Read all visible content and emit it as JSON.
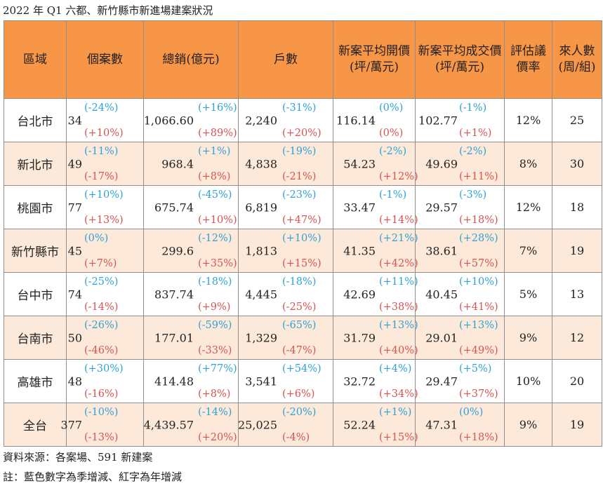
{
  "title": "2022 年 Q1 六都、新竹縣市新進場建案狀況",
  "headers": [
    "區域",
    "個案數",
    "總銷(億元)",
    "戶數",
    "新案平均開價(坪/萬元)",
    "新案平均成交價(坪/萬元)",
    "評估議價率",
    "來人數(周/組)"
  ],
  "rows": [
    {
      "region": "台北市",
      "cases": [
        "34",
        "(-24%)",
        "(+10%)"
      ],
      "sales": [
        "1,066.60",
        "(+16%)",
        "(+89%)"
      ],
      "units": [
        "2,240",
        "(-31%)",
        "(+20%)"
      ],
      "ask": [
        "116.14",
        "(0%)",
        "(0%)"
      ],
      "deal": [
        "102.77",
        "(-1%)",
        "(+1%)"
      ],
      "bargain": "12%",
      "visitors": "25"
    },
    {
      "region": "新北市",
      "cases": [
        "49",
        "(-11%)",
        "(-17%)"
      ],
      "sales": [
        "968.4",
        "(+1%)",
        "(+8%)"
      ],
      "units": [
        "4,838",
        "(-19%)",
        "(-21%)"
      ],
      "ask": [
        "54.23",
        "(-2%)",
        "(+12%)"
      ],
      "deal": [
        "49.69",
        "(-2%)",
        "(+11%)"
      ],
      "bargain": "8%",
      "visitors": "30"
    },
    {
      "region": "桃園市",
      "cases": [
        "77",
        "(+10%)",
        "(+13%)"
      ],
      "sales": [
        "675.74",
        "(-45%)",
        "(+10%)"
      ],
      "units": [
        "6,819",
        "(-23%)",
        "(+47%)"
      ],
      "ask": [
        "33.47",
        "(-1%)",
        "(+14%)"
      ],
      "deal": [
        "29.57",
        "(-3%)",
        "(+18%)"
      ],
      "bargain": "12%",
      "visitors": "18"
    },
    {
      "region": "新竹縣市",
      "cases": [
        "45",
        "(0%)",
        "(+7%)"
      ],
      "sales": [
        "299.6",
        "(-12%)",
        "(+35%)"
      ],
      "units": [
        "1,813",
        "(+10%)",
        "(+15%)"
      ],
      "ask": [
        "41.35",
        "(+21%)",
        "(+42%)"
      ],
      "deal": [
        "38.61",
        "(+28%)",
        "(+57%)"
      ],
      "bargain": "7%",
      "visitors": "19"
    },
    {
      "region": "台中市",
      "cases": [
        "74",
        "(-25%)",
        "(-14%)"
      ],
      "sales": [
        "837.74",
        "(-18%)",
        "(+9%)"
      ],
      "units": [
        "4,445",
        "(-18%)",
        "(-25%)"
      ],
      "ask": [
        "42.69",
        "(+11%)",
        "(+38%)"
      ],
      "deal": [
        "40.45",
        "(+10%)",
        "(+41%)"
      ],
      "bargain": "5%",
      "visitors": "13"
    },
    {
      "region": "台南市",
      "cases": [
        "50",
        "(-26%)",
        "(-46%)"
      ],
      "sales": [
        "177.01",
        "(-59%)",
        "(-33%)"
      ],
      "units": [
        "1,329",
        "(-65%)",
        "(-47%)"
      ],
      "ask": [
        "31.79",
        "(+13%)",
        "(+40%)"
      ],
      "deal": [
        "29.01",
        "(+13%)",
        "(+49%)"
      ],
      "bargain": "9%",
      "visitors": "12"
    },
    {
      "region": "高雄市",
      "cases": [
        "48",
        "(+30%)",
        "(-16%)"
      ],
      "sales": [
        "414.48",
        "(+77%)",
        "(+8%)"
      ],
      "units": [
        "3,541",
        "(+54%)",
        "(+6%)"
      ],
      "ask": [
        "32.72",
        "(+4%)",
        "(+34%)"
      ],
      "deal": [
        "29.47",
        "(+5%)",
        "(+37%)"
      ],
      "bargain": "10%",
      "visitors": "20"
    },
    {
      "region": "全台",
      "cases": [
        "377",
        "(-10%)",
        "(-13%)"
      ],
      "sales": [
        "4,439.57",
        "(-14%)",
        "(+20%)"
      ],
      "units": [
        "25,025",
        "(-20%)",
        "(-4%)"
      ],
      "ask": [
        "52.24",
        "(+1%)",
        "(+15%)"
      ],
      "deal": [
        "47.31",
        "(0%)",
        "(+18%)"
      ],
      "bargain": "9%",
      "visitors": "19"
    }
  ],
  "source_note": "資料來源：各案場、591 新建案",
  "legend_note": "註：藍色數字為季增減、紅字為年增減",
  "colors": {
    "header_bg": "#f79646",
    "stripe_bg": "#fde9d9",
    "quarter_change": "#2ea3d6",
    "year_change": "#d9534f"
  }
}
